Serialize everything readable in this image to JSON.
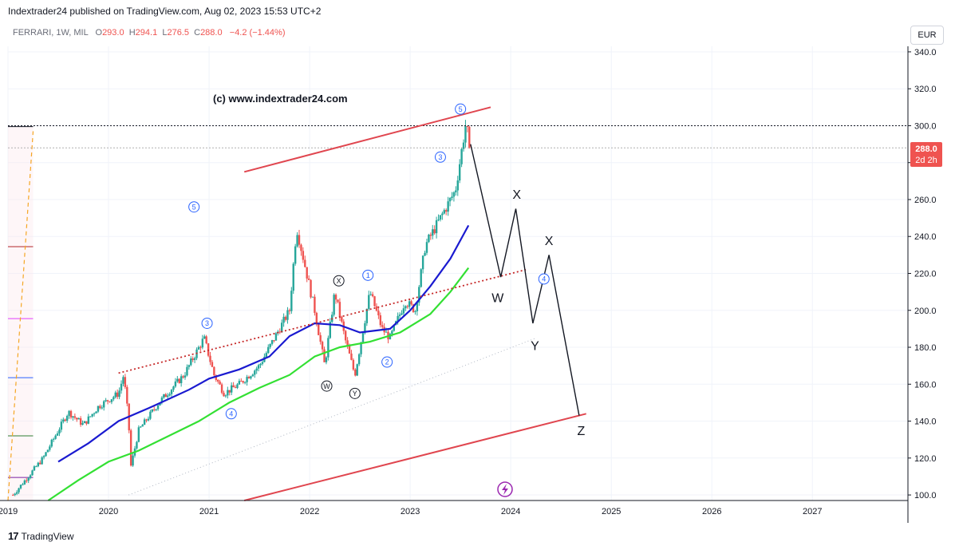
{
  "header": {
    "published": "Indextrader24 published on TradingView.com, Aug 02, 2023 15:53 UTC+2",
    "symbol": "FERRARI, 1W, MIL",
    "o_label": "O",
    "o": "293.0",
    "h_label": "H",
    "h": "294.1",
    "l_label": "L",
    "l": "276.5",
    "c_label": "C",
    "c": "288.0",
    "change": "−4.2 (−1.44%)"
  },
  "currency": "EUR",
  "watermark": "(c) www.indextrader24.com",
  "price_badge": {
    "price": "288.0",
    "countdown": "2d 2h",
    "color": "#ef5350"
  },
  "footer": {
    "brand": "TradingView",
    "logo": "17"
  },
  "colors": {
    "up": "#26a69a",
    "down": "#ef5350",
    "ma_fast": "#1a1ad0",
    "ma_slow": "#33e033",
    "channel": "#e0464f",
    "wave_label": "#2962ff"
  },
  "chart_data": {
    "type": "candlestick",
    "title": "FERRARI, 1W, MIL",
    "y_ticks": [
      "340.0",
      "320.0",
      "300.0",
      "280.0",
      "260.0",
      "240.0",
      "220.0",
      "200.0",
      "180.0",
      "160.0",
      "140.0",
      "120.0",
      "100.0"
    ],
    "ylim": [
      97,
      343
    ],
    "x_ticks": [
      "2019",
      "2020",
      "2021",
      "2022",
      "2023",
      "2024",
      "2025",
      "2026",
      "2027"
    ],
    "xlim": [
      2019.0,
      2027.95
    ],
    "price_path": [
      [
        2019.05,
        100
      ],
      [
        2019.2,
        110
      ],
      [
        2019.35,
        120
      ],
      [
        2019.5,
        135
      ],
      [
        2019.6,
        145
      ],
      [
        2019.75,
        138
      ],
      [
        2019.9,
        148
      ],
      [
        2020.1,
        155
      ],
      [
        2020.15,
        165
      ],
      [
        2020.2,
        140
      ],
      [
        2020.22,
        115
      ],
      [
        2020.3,
        135
      ],
      [
        2020.5,
        150
      ],
      [
        2020.75,
        165
      ],
      [
        2020.95,
        185
      ],
      [
        2021.05,
        165
      ],
      [
        2021.15,
        155
      ],
      [
        2021.3,
        160
      ],
      [
        2021.5,
        170
      ],
      [
        2021.65,
        185
      ],
      [
        2021.8,
        200
      ],
      [
        2021.87,
        245
      ],
      [
        2021.95,
        225
      ],
      [
        2022.05,
        200
      ],
      [
        2022.15,
        170
      ],
      [
        2022.25,
        210
      ],
      [
        2022.35,
        185
      ],
      [
        2022.45,
        165
      ],
      [
        2022.55,
        195
      ],
      [
        2022.6,
        210
      ],
      [
        2022.72,
        190
      ],
      [
        2022.8,
        185
      ],
      [
        2022.95,
        205
      ],
      [
        2023.05,
        200
      ],
      [
        2023.15,
        235
      ],
      [
        2023.3,
        250
      ],
      [
        2023.45,
        265
      ],
      [
        2023.55,
        300
      ],
      [
        2023.6,
        290
      ]
    ],
    "last_close": 288.0,
    "ma_fast": [
      [
        2019.5,
        118
      ],
      [
        2019.8,
        128
      ],
      [
        2020.1,
        140
      ],
      [
        2020.4,
        147
      ],
      [
        2020.8,
        157
      ],
      [
        2021.0,
        163
      ],
      [
        2021.3,
        168
      ],
      [
        2021.6,
        175
      ],
      [
        2021.8,
        186
      ],
      [
        2022.05,
        193
      ],
      [
        2022.3,
        192
      ],
      [
        2022.5,
        188
      ],
      [
        2022.8,
        190
      ],
      [
        2023.0,
        200
      ],
      [
        2023.2,
        213
      ],
      [
        2023.4,
        228
      ],
      [
        2023.58,
        246
      ]
    ],
    "ma_slow": [
      [
        2019.4,
        97
      ],
      [
        2019.7,
        108
      ],
      [
        2020.0,
        118
      ],
      [
        2020.3,
        124
      ],
      [
        2020.6,
        132
      ],
      [
        2020.9,
        140
      ],
      [
        2021.2,
        150
      ],
      [
        2021.5,
        158
      ],
      [
        2021.8,
        165
      ],
      [
        2022.05,
        175
      ],
      [
        2022.3,
        180
      ],
      [
        2022.6,
        183
      ],
      [
        2022.9,
        188
      ],
      [
        2023.2,
        198
      ],
      [
        2023.4,
        210
      ],
      [
        2023.58,
        223
      ]
    ],
    "channel_upper": [
      [
        2021.35,
        275
      ],
      [
        2023.8,
        310
      ]
    ],
    "channel_lower": [
      [
        2021.35,
        97
      ],
      [
        2024.75,
        144
      ]
    ],
    "dotted_trend": [
      [
        2020.1,
        166
      ],
      [
        2024.15,
        222
      ]
    ],
    "faint_trend": [
      [
        2020.2,
        100
      ],
      [
        2024.25,
        185
      ]
    ],
    "projection": [
      [
        2023.6,
        290
      ],
      [
        2023.9,
        218
      ],
      [
        2024.05,
        255
      ],
      [
        2024.22,
        193
      ],
      [
        2024.38,
        230
      ],
      [
        2024.68,
        143
      ]
    ],
    "wave_labels_circled": [
      {
        "text": "5",
        "x": 2023.5,
        "y": 309,
        "style": "blue"
      },
      {
        "text": "3",
        "x": 2023.3,
        "y": 283,
        "style": "blue"
      },
      {
        "text": "5",
        "x": 2020.85,
        "y": 256,
        "style": "blue"
      },
      {
        "text": "1",
        "x": 2022.58,
        "y": 219,
        "style": "blue"
      },
      {
        "text": "X",
        "x": 2022.29,
        "y": 216,
        "style": "black"
      },
      {
        "text": "3",
        "x": 2020.98,
        "y": 193,
        "style": "blue"
      },
      {
        "text": "4",
        "x": 2024.33,
        "y": 217,
        "style": "blue"
      },
      {
        "text": "2",
        "x": 2022.77,
        "y": 172,
        "style": "blue"
      },
      {
        "text": "W",
        "x": 2022.17,
        "y": 159,
        "style": "black"
      },
      {
        "text": "Y",
        "x": 2022.45,
        "y": 155,
        "style": "black"
      },
      {
        "text": "4",
        "x": 2021.22,
        "y": 144,
        "style": "blue"
      }
    ],
    "wave_labels_plain": [
      {
        "text": "X",
        "x": 2024.06,
        "y": 263
      },
      {
        "text": "X",
        "x": 2024.38,
        "y": 238
      },
      {
        "text": "W",
        "x": 2023.87,
        "y": 207
      },
      {
        "text": "Y",
        "x": 2024.24,
        "y": 181
      },
      {
        "text": "Z",
        "x": 2024.7,
        "y": 135
      }
    ],
    "horizontal_lines": [
      {
        "y": 300,
        "style": "dotted",
        "color": "#131722"
      },
      {
        "y": 288,
        "style": "dotted",
        "color": "#b0b0b0"
      }
    ],
    "left_levels": [
      {
        "y": 299.5,
        "color": "#131722"
      },
      {
        "y": 234.5,
        "color": "#b2252a"
      },
      {
        "y": 195.5,
        "color": "#e040fb"
      },
      {
        "y": 163.5,
        "color": "#2962ff"
      },
      {
        "y": 132,
        "color": "#2e7d32"
      },
      {
        "y": 109.5,
        "color": "#7b1fa2"
      }
    ]
  }
}
